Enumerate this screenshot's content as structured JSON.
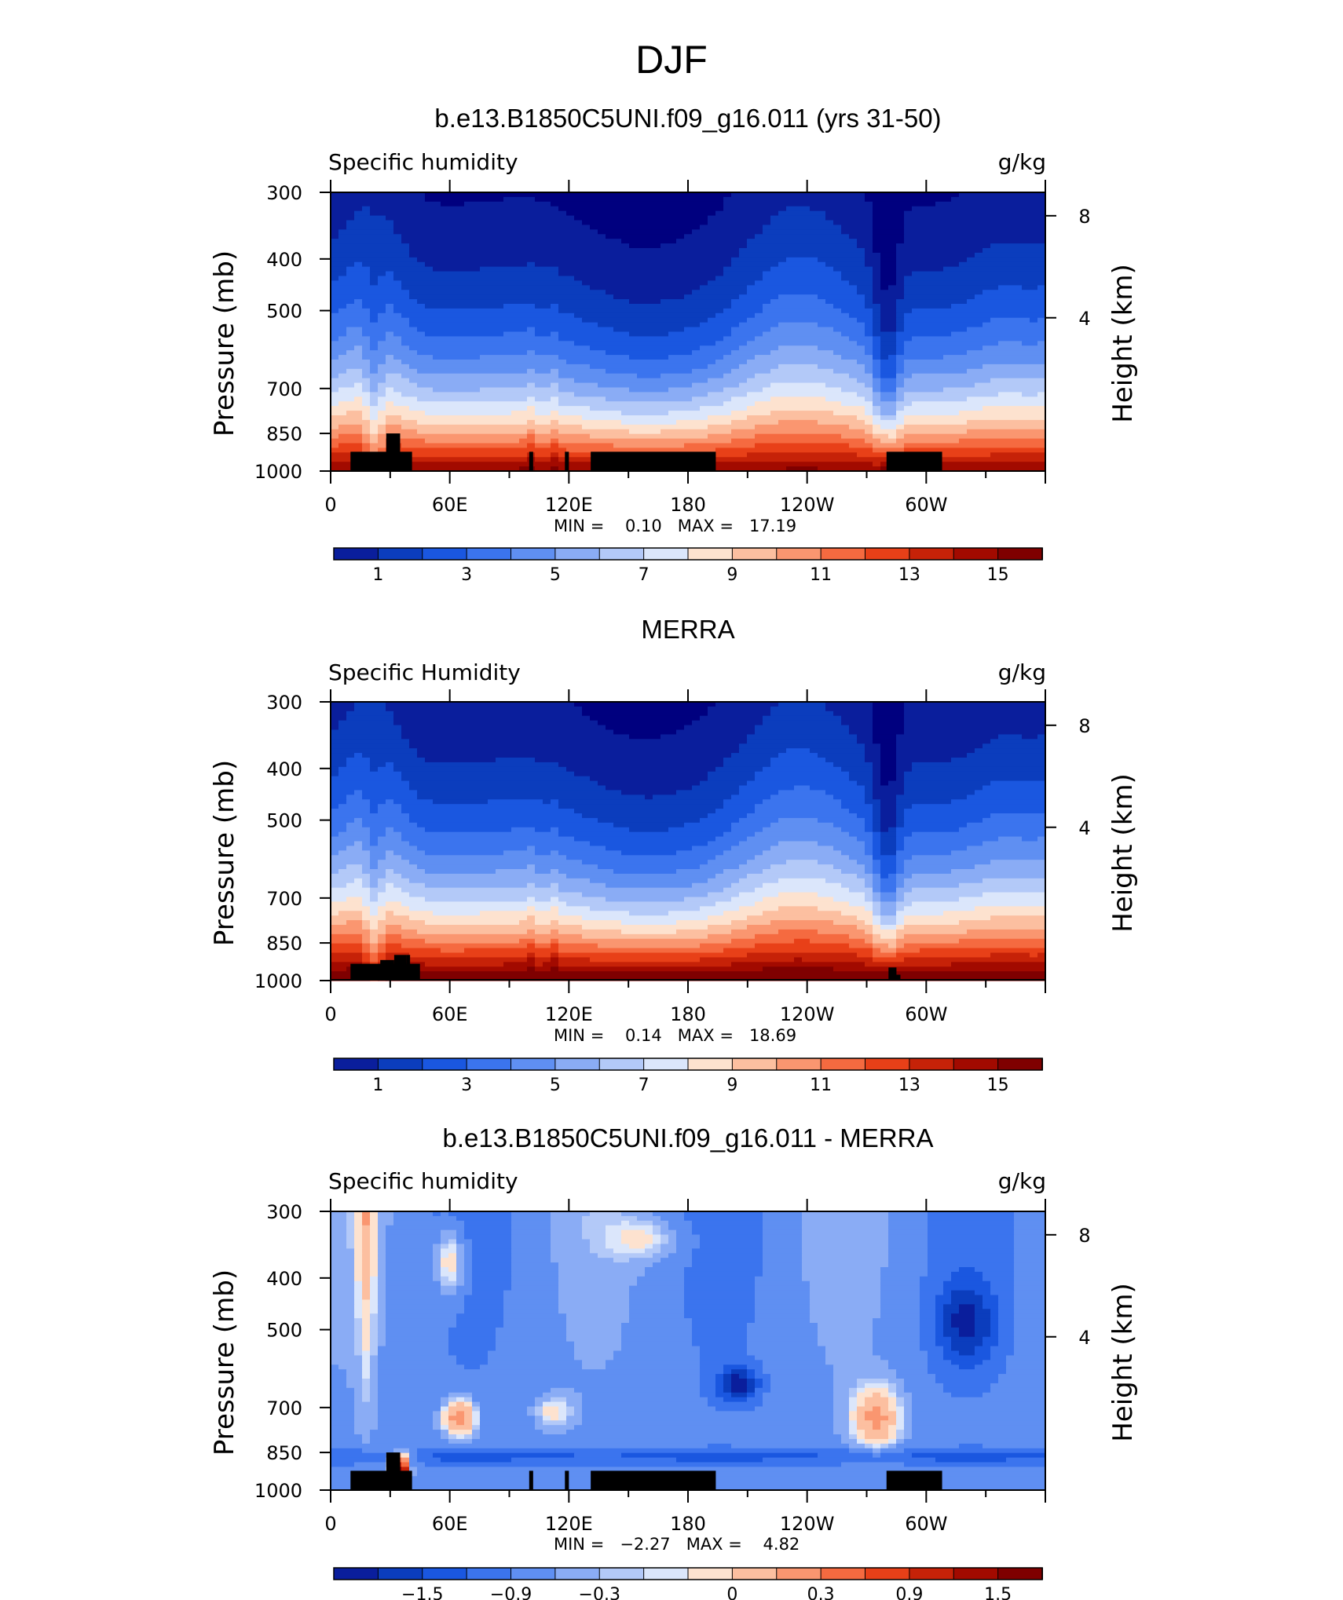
{
  "figure": {
    "title": "DJF"
  },
  "colors": {
    "abs": [
      "#00007f",
      "#0a1e9c",
      "#0b3dbd",
      "#1a57e0",
      "#3b74ee",
      "#5f8ff2",
      "#8aacf5",
      "#b3c9f8",
      "#dbe6fb",
      "#fde2cf",
      "#fcbfa0",
      "#fa9670",
      "#f56a40",
      "#e84018",
      "#c62208",
      "#a20a00",
      "#7f0000"
    ],
    "diff": [
      "#00007f",
      "#0a1e9c",
      "#0b3dbd",
      "#1a57e0",
      "#3b74ee",
      "#5f8ff2",
      "#8aacf5",
      "#b3c9f8",
      "#dbe6fb",
      "#fde2cf",
      "#fcbfa0",
      "#fa9670",
      "#f56a40",
      "#e84018",
      "#c62208",
      "#a20a00",
      "#7f0000"
    ]
  },
  "chart_data": [
    {
      "type": "heatmap",
      "title": "b.e13.B1850C5UNI.f09_g16.011 (yrs 31-50)",
      "left_label": "Specific humidity",
      "units": "g/kg",
      "ylabel": "Pressure (mb)",
      "ylabel_right": "Height (km)",
      "yticks": [
        "300",
        "400",
        "500",
        "700",
        "850",
        "1000"
      ],
      "yticks_right": [
        "8",
        "4"
      ],
      "xticks": [
        "0",
        "60E",
        "120E",
        "180",
        "120W",
        "60W"
      ],
      "stats": "MIN =    0.10   MAX =   17.19",
      "colorbar_ticks": [
        "1",
        "3",
        "5",
        "7",
        "9",
        "11",
        "13",
        "15"
      ],
      "min": 0.1,
      "max": 17.19,
      "field": "model"
    },
    {
      "type": "heatmap",
      "title": "MERRA",
      "left_label": "Specific Humidity",
      "units": "g/kg",
      "ylabel": "Pressure (mb)",
      "ylabel_right": "Height (km)",
      "yticks": [
        "300",
        "400",
        "500",
        "700",
        "850",
        "1000"
      ],
      "yticks_right": [
        "8",
        "4"
      ],
      "xticks": [
        "0",
        "60E",
        "120E",
        "180",
        "120W",
        "60W"
      ],
      "stats": "MIN =    0.14   MAX =   18.69",
      "colorbar_ticks": [
        "1",
        "3",
        "5",
        "7",
        "9",
        "11",
        "13",
        "15"
      ],
      "min": 0.14,
      "max": 18.69,
      "field": "obs"
    },
    {
      "type": "heatmap",
      "title": "b.e13.B1850C5UNI.f09_g16.011 - MERRA",
      "left_label": "Specific humidity",
      "units": "g/kg",
      "ylabel": "Pressure (mb)",
      "ylabel_right": "Height (km)",
      "yticks": [
        "300",
        "400",
        "500",
        "700",
        "850",
        "1000"
      ],
      "yticks_right": [
        "8",
        "4"
      ],
      "xticks": [
        "0",
        "60E",
        "120E",
        "180",
        "120W",
        "60W"
      ],
      "stats": "MIN =   −2.27   MAX =    4.82",
      "colorbar_ticks": [
        "−1.5",
        "−0.9",
        "−0.3",
        "0",
        "0.3",
        "0.9",
        "1.5"
      ],
      "min": -2.27,
      "max": 4.82,
      "field": "diff"
    }
  ]
}
